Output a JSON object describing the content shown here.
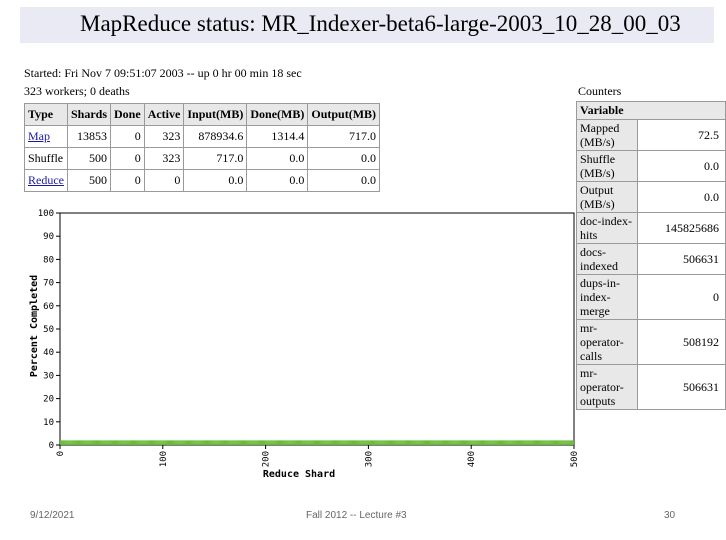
{
  "title": "MapReduce status: MR_Indexer-beta6-large-2003_10_28_00_03",
  "status": {
    "started": "Started: Fri Nov 7 09:51:07 2003 -- up 0 hr 00 min 18 sec",
    "workers": "323 workers; 0 deaths"
  },
  "jobs_table": {
    "headers": [
      "Type",
      "Shards",
      "Done",
      "Active",
      "Input(MB)",
      "Done(MB)",
      "Output(MB)"
    ],
    "rows": [
      {
        "type": "Map",
        "shards": "13853",
        "done": "0",
        "active": "323",
        "input": "878934.6",
        "done_mb": "1314.4",
        "output": "717.0"
      },
      {
        "type": "Shuffle",
        "shards": "500",
        "done": "0",
        "active": "323",
        "input": "717.0",
        "done_mb": "0.0",
        "output": "0.0"
      },
      {
        "type": "Reduce",
        "shards": "500",
        "done": "0",
        "active": "0",
        "input": "0.0",
        "done_mb": "0.0",
        "output": "0.0"
      }
    ]
  },
  "counters": {
    "heading": "Counters",
    "header": "Variable",
    "rows": [
      {
        "name": "Mapped (MB/s)",
        "value": "72.5"
      },
      {
        "name": "Shuffle (MB/s)",
        "value": "0.0"
      },
      {
        "name": "Output (MB/s)",
        "value": "0.0"
      },
      {
        "name": "doc-index-hits",
        "value": "145825686"
      },
      {
        "name": "docs-indexed",
        "value": "506631"
      },
      {
        "name": "dups-in-index-merge",
        "value": "0"
      },
      {
        "name": "mr-operator-calls",
        "value": "508192"
      },
      {
        "name": "mr-operator-outputs",
        "value": "506631"
      }
    ]
  },
  "chart_data": {
    "type": "bar",
    "xlabel": "Reduce Shard",
    "ylabel": "Percent Completed",
    "xlim": [
      0,
      500
    ],
    "ylim": [
      0,
      100
    ],
    "xticks": [
      0,
      100,
      200,
      300,
      400,
      500
    ],
    "yticks": [
      0,
      10,
      20,
      30,
      40,
      50,
      60,
      70,
      80,
      90,
      100
    ],
    "num_shards": 500,
    "bar_value": 2,
    "bar_color": "#66bb33",
    "grid": false
  },
  "footer": {
    "date": "9/12/2021",
    "course": "Fall 2012 -- Lecture #3",
    "page": "30"
  }
}
